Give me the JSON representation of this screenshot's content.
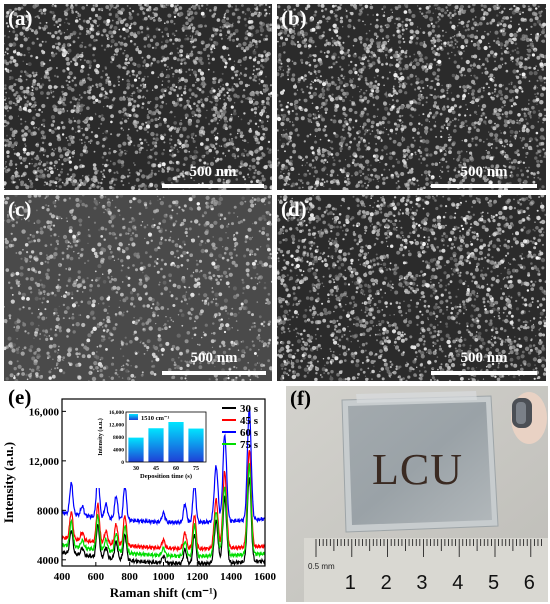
{
  "panels": {
    "a": {
      "label": "(a)",
      "scale": "500 nm"
    },
    "b": {
      "label": "(b)",
      "scale": "500 nm"
    },
    "c": {
      "label": "(c)",
      "scale": "500 nm"
    },
    "d": {
      "label": "(d)",
      "scale": "500 nm"
    },
    "e": {
      "label": "(e)"
    },
    "f": {
      "label": "(f)",
      "sample_text": "LCU",
      "ruler_unit": "0.5 mm",
      "ruler_numbers": [
        "1",
        "2",
        "3",
        "4",
        "5",
        "6"
      ]
    }
  },
  "chart_data": [
    {
      "type": "line",
      "xlabel": "Raman shift (cm⁻¹)",
      "ylabel": "Intensity (a.u.)",
      "xlim": [
        400,
        1600
      ],
      "ylim": [
        3500,
        17000
      ],
      "xticks": [
        400,
        600,
        800,
        1000,
        1200,
        1400,
        1600
      ],
      "yticks": [
        4000,
        8000,
        12000,
        16000
      ],
      "ytick_labels": [
        "4000",
        "8000",
        "12,000",
        "16,000"
      ],
      "peaks": [
        {
          "x": 455,
          "h": 1.0
        },
        {
          "x": 520,
          "h": 0.3
        },
        {
          "x": 612,
          "h": 1.4
        },
        {
          "x": 660,
          "h": 0.45
        },
        {
          "x": 720,
          "h": 0.75
        },
        {
          "x": 772,
          "h": 1.1
        },
        {
          "x": 1000,
          "h": 0.3
        },
        {
          "x": 1127,
          "h": 0.6
        },
        {
          "x": 1183,
          "h": 1.25
        },
        {
          "x": 1311,
          "h": 1.8
        },
        {
          "x": 1362,
          "h": 2.8
        },
        {
          "x": 1507,
          "h": 3.6
        }
      ],
      "series": [
        {
          "name": "30 s",
          "color": "#000000",
          "base": 4600,
          "end": 3900,
          "peak_scale": 1900
        },
        {
          "name": "45 s",
          "color": "#ff0000",
          "base": 5800,
          "end": 5100,
          "peak_scale": 2200
        },
        {
          "name": "60 s",
          "color": "#0000ff",
          "base": 7800,
          "end": 7300,
          "peak_scale": 2500
        },
        {
          "name": "75 s",
          "color": "#00dd00",
          "base": 5200,
          "end": 4500,
          "peak_scale": 2000
        }
      ],
      "legend_position": "top-right"
    },
    {
      "type": "bar",
      "legend": "1510 cm⁻¹",
      "categories": [
        "30",
        "45",
        "60",
        "75"
      ],
      "values": [
        7800,
        10800,
        12800,
        10700
      ],
      "ylim": [
        0,
        16000
      ],
      "yticks": [
        "0",
        "4000",
        "8000",
        "12,000",
        "16,000"
      ],
      "xlabel": "Deposition time (s)",
      "ylabel": "Intensity (a.u.)"
    }
  ]
}
